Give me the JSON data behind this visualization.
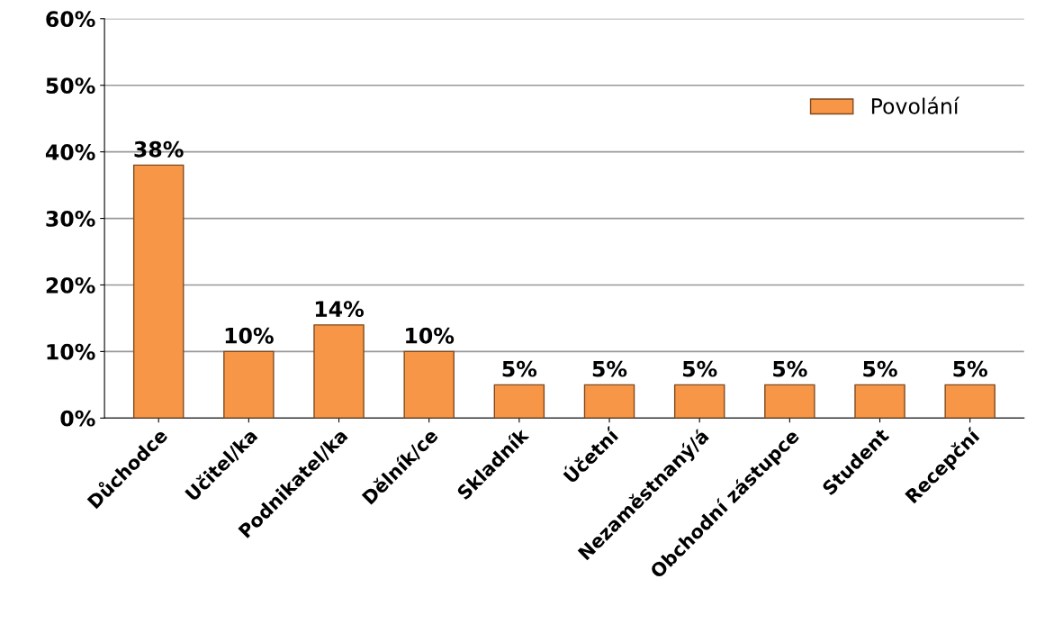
{
  "chart_data": {
    "type": "bar",
    "categories": [
      "Důchodce",
      "Učitel/ka",
      "Podnikatel/ka",
      "Dělník/ce",
      "Skladník",
      "Účetní",
      "Nezaměstnaný/á",
      "Obchodní zástupce",
      "Student",
      "Recepční"
    ],
    "series": [
      {
        "name": "Povolání",
        "color": "#f79646",
        "values": [
          38,
          10,
          14,
          10,
          5,
          5,
          5,
          5,
          5,
          5
        ],
        "value_labels": [
          "38%",
          "10%",
          "14%",
          "10%",
          "5%",
          "5%",
          "5%",
          "5%",
          "5%",
          "5%"
        ]
      }
    ],
    "ylim": [
      0,
      60
    ],
    "yticks": [
      {
        "value": 0,
        "label": "0%"
      },
      {
        "value": 10,
        "label": "10%"
      },
      {
        "value": 20,
        "label": "20%"
      },
      {
        "value": 30,
        "label": "30%"
      },
      {
        "value": 40,
        "label": "40%"
      },
      {
        "value": 50,
        "label": "50%"
      },
      {
        "value": 60,
        "label": "60%"
      }
    ],
    "grid": "y",
    "legend": "top right"
  }
}
